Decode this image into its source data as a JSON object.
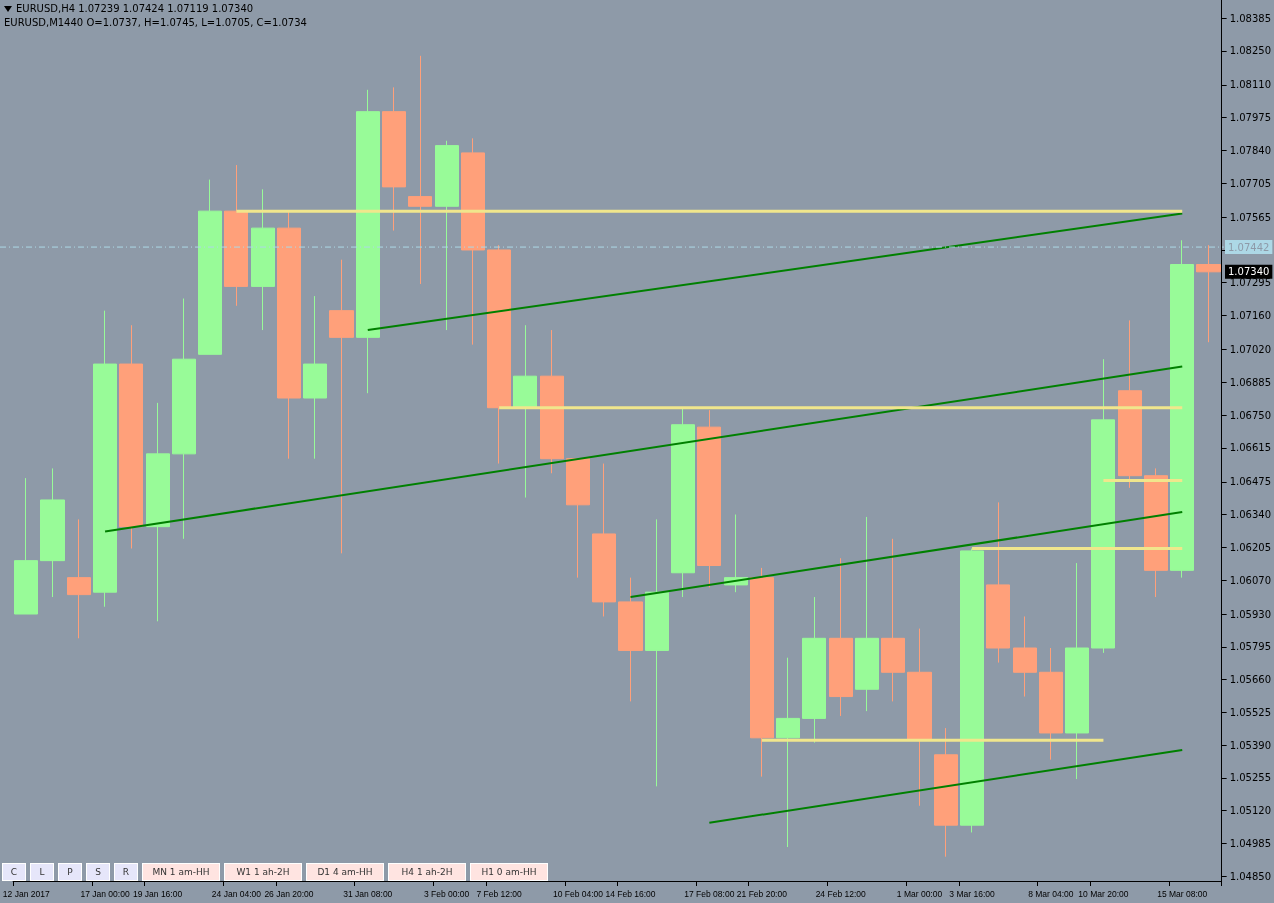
{
  "chart_data": {
    "type": "candlestick",
    "title": "EURUSD,H4  1.07239 1.07424 1.07119 1.07340",
    "subtitle": "EURUSD,M1440   O=1.0737,  H=1.0745,  L=1.0705,  C=1.0734",
    "categories": [
      "12 Jan 2017",
      null,
      null,
      "17 Jan 00:00",
      null,
      "19 Jan 16:00",
      null,
      null,
      "24 Jan 04:00",
      null,
      "26 Jan 20:00",
      null,
      null,
      "31 Jan 08:00",
      null,
      null,
      "3 Feb 00:00",
      null,
      "7 Feb 12:00",
      null,
      null,
      "10 Feb 04:00",
      null,
      "14 Feb 16:00",
      null,
      null,
      "17 Feb 08:00",
      null,
      "21 Feb 20:00",
      null,
      null,
      "24 Feb 12:00",
      null,
      null,
      "1 Mar 00:00",
      null,
      "3 Mar 16:00",
      null,
      null,
      "8 Mar 04:00",
      null,
      "10 Mar 20:00",
      null,
      null,
      "15 Mar 08:00",
      null
    ],
    "series": [
      {
        "ohlc": [
          [
            1.0593,
            1.0649,
            1.0593,
            1.0615
          ],
          [
            1.0615,
            1.0653,
            1.06,
            1.064
          ],
          [
            1.0608,
            1.0632,
            1.0583,
            1.0601
          ],
          [
            1.0602,
            1.0718,
            1.0596,
            1.0696
          ],
          [
            1.0696,
            1.0712,
            1.062,
            1.0629
          ],
          [
            1.0629,
            1.068,
            1.059,
            1.0659
          ],
          [
            1.0659,
            1.0723,
            1.0624,
            1.0698
          ],
          [
            1.07,
            1.0772,
            1.07,
            1.0759
          ],
          [
            1.0759,
            1.0778,
            1.072,
            1.0728
          ],
          [
            1.0728,
            1.0768,
            1.071,
            1.0752
          ],
          [
            1.0752,
            1.0759,
            1.0657,
            1.0682
          ],
          [
            1.0682,
            1.0724,
            1.0657,
            1.0696
          ],
          [
            1.0718,
            1.0739,
            1.0618,
            1.0707
          ],
          [
            1.0707,
            1.0809,
            1.0684,
            1.08
          ],
          [
            1.08,
            1.081,
            1.0751,
            1.0769
          ],
          [
            1.0765,
            1.0823,
            1.0729,
            1.0761
          ],
          [
            1.0761,
            1.0788,
            1.071,
            1.0786
          ],
          [
            1.0783,
            1.0789,
            1.0704,
            1.0743
          ],
          [
            1.0743,
            1.0745,
            1.0655,
            1.0678
          ],
          [
            1.0678,
            1.0712,
            1.0641,
            1.0691
          ],
          [
            1.0691,
            1.071,
            1.0651,
            1.0657
          ],
          [
            1.0657,
            1.0657,
            1.0608,
            1.0638
          ],
          [
            1.0626,
            1.0655,
            1.0592,
            1.0598
          ],
          [
            1.0598,
            1.0608,
            1.0557,
            1.0578
          ],
          [
            1.0578,
            1.0632,
            1.0522,
            1.0602
          ],
          [
            1.061,
            1.0678,
            1.06,
            1.0671
          ],
          [
            1.067,
            1.0677,
            1.0604,
            1.0613
          ],
          [
            1.0605,
            1.0634,
            1.0602,
            1.0608
          ],
          [
            1.0608,
            1.0612,
            1.0526,
            1.0542
          ],
          [
            1.0542,
            1.0575,
            1.0497,
            1.055
          ],
          [
            1.055,
            1.06,
            1.054,
            1.0583
          ],
          [
            1.0583,
            1.0616,
            1.0551,
            1.0559
          ],
          [
            1.0562,
            1.0633,
            1.0553,
            1.0583
          ],
          [
            1.0583,
            1.0624,
            1.0557,
            1.0569
          ],
          [
            1.0569,
            1.0587,
            1.0514,
            1.0541
          ],
          [
            1.0535,
            1.0546,
            1.0493,
            1.0506
          ],
          [
            1.0506,
            1.062,
            1.0503,
            1.0619
          ],
          [
            1.0605,
            1.0639,
            1.0573,
            1.0579
          ],
          [
            1.0579,
            1.0592,
            1.0559,
            1.0569
          ],
          [
            1.0569,
            1.0579,
            1.0533,
            1.0544
          ],
          [
            1.0544,
            1.0614,
            1.0525,
            1.0579
          ],
          [
            1.0579,
            1.0698,
            1.0577,
            1.0673
          ],
          [
            1.0685,
            1.0714,
            1.0645,
            1.065
          ],
          [
            1.065,
            1.0653,
            1.06,
            1.0611
          ],
          [
            1.0611,
            1.0747,
            1.0608,
            1.0737
          ],
          [
            1.0737,
            1.0745,
            1.0705,
            1.0734
          ]
        ],
        "colors": [
          "#98fb98",
          "#98fb98",
          "#ffa07a",
          "#98fb98",
          "#ffa07a",
          "#98fb98",
          "#98fb98",
          "#98fb98",
          "#ffa07a",
          "#98fb98",
          "#ffa07a",
          "#98fb98",
          "#ffa07a",
          "#98fb98",
          "#ffa07a",
          "#ffa07a",
          "#98fb98",
          "#ffa07a",
          "#ffa07a",
          "#98fb98",
          "#ffa07a",
          "#ffa07a",
          "#ffa07a",
          "#ffa07a",
          "#98fb98",
          "#98fb98",
          "#ffa07a",
          "#98fb98",
          "#ffa07a",
          "#98fb98",
          "#98fb98",
          "#ffa07a",
          "#98fb98",
          "#ffa07a",
          "#ffa07a",
          "#ffa07a",
          "#98fb98",
          "#ffa07a",
          "#ffa07a",
          "#ffa07a",
          "#98fb98",
          "#98fb98",
          "#ffa07a",
          "#ffa07a",
          "#98fb98",
          "#ffa07a"
        ]
      },
      {
        "type": "line",
        "color": "#008000",
        "x": [
          "31 Jan 08:00",
          "15 Mar 08:00"
        ],
        "values": [
          1.071,
          1.0758
        ]
      },
      {
        "type": "line",
        "color": "#008000",
        "x": [
          "17 Jan 00:00",
          "15 Mar 08:00"
        ],
        "values": [
          1.0627,
          1.0695
        ]
      },
      {
        "type": "line",
        "color": "#008000",
        "x": [
          "14 Feb 16:00",
          "15 Mar 08:00"
        ],
        "values": [
          1.06,
          1.0635
        ]
      },
      {
        "type": "line",
        "color": "#008000",
        "x": [
          "17 Feb 08:00",
          "15 Mar 08:00"
        ],
        "values": [
          1.0507,
          1.0537
        ]
      },
      {
        "type": "line",
        "color": "#f0e68c",
        "x": [
          "24 Jan 04:00",
          "15 Mar 08:00"
        ],
        "values": [
          1.0759,
          1.0759
        ]
      },
      {
        "type": "line",
        "color": "#f0e68c",
        "x": [
          "7 Feb 12:00",
          "15 Mar 08:00"
        ],
        "values": [
          1.0678,
          1.0678
        ]
      },
      {
        "type": "line",
        "color": "#f0e68c",
        "x": [
          "10 Mar 20:00",
          "15 Mar 08:00"
        ],
        "values": [
          1.0648,
          1.0648
        ]
      },
      {
        "type": "line",
        "color": "#f0e68c",
        "x": [
          "3 Mar 16:00",
          "15 Mar 08:00"
        ],
        "values": [
          1.062,
          1.062
        ]
      },
      {
        "type": "line",
        "color": "#f0e68c",
        "x": [
          "21 Feb 20:00",
          "10 Mar 20:00"
        ],
        "values": [
          1.0541,
          1.0541
        ]
      }
    ],
    "ylim": [
      1.0483,
      1.0846
    ],
    "yticks": [
      {
        "value": 1.0485,
        "label": "1.04850"
      },
      {
        "value": 1.04985,
        "label": "1.04985"
      },
      {
        "value": 1.0512,
        "label": "1.05120"
      },
      {
        "value": 1.05255,
        "label": "1.05255"
      },
      {
        "value": 1.0539,
        "label": "1.05390"
      },
      {
        "value": 1.05525,
        "label": "1.05525"
      },
      {
        "value": 1.0566,
        "label": "1.05660"
      },
      {
        "value": 1.05795,
        "label": "1.05795"
      },
      {
        "value": 1.0593,
        "label": "1.05930"
      },
      {
        "value": 1.0607,
        "label": "1.06070"
      },
      {
        "value": 1.06205,
        "label": "1.06205"
      },
      {
        "value": 1.0634,
        "label": "1.06340"
      },
      {
        "value": 1.06475,
        "label": "1.06475"
      },
      {
        "value": 1.06615,
        "label": "1.06615"
      },
      {
        "value": 1.0675,
        "label": "1.06750"
      },
      {
        "value": 1.06885,
        "label": "1.06885"
      },
      {
        "value": 1.0702,
        "label": "1.07020"
      },
      {
        "value": 1.0716,
        "label": "1.07160"
      },
      {
        "value": 1.07295,
        "label": "1.07295"
      },
      {
        "value": 1.0743,
        "label": null
      },
      {
        "value": 1.07565,
        "label": "1.07565"
      },
      {
        "value": 1.07705,
        "label": "1.07705"
      },
      {
        "value": 1.0784,
        "label": "1.07840"
      },
      {
        "value": 1.07975,
        "label": "1.07975"
      },
      {
        "value": 1.0811,
        "label": "1.08110"
      },
      {
        "value": 1.0825,
        "label": "1.08250"
      },
      {
        "value": 1.08385,
        "label": "1.08385"
      }
    ],
    "ref_lines": [
      {
        "axis": "y",
        "value": 1.07442,
        "label": "1.07442",
        "color": "#add8e6",
        "line_style": "dashed"
      }
    ],
    "annotations": [
      "1.07340",
      "C",
      "L",
      "P",
      "S",
      "R",
      "MN 1 am-HH",
      "W1 1 ah-2H",
      "D1 4 am-HH",
      "H4 1 ah-2H",
      "H1 0 am-HH"
    ],
    "grid": false,
    "marker": "none",
    "line_style": "solid"
  }
}
